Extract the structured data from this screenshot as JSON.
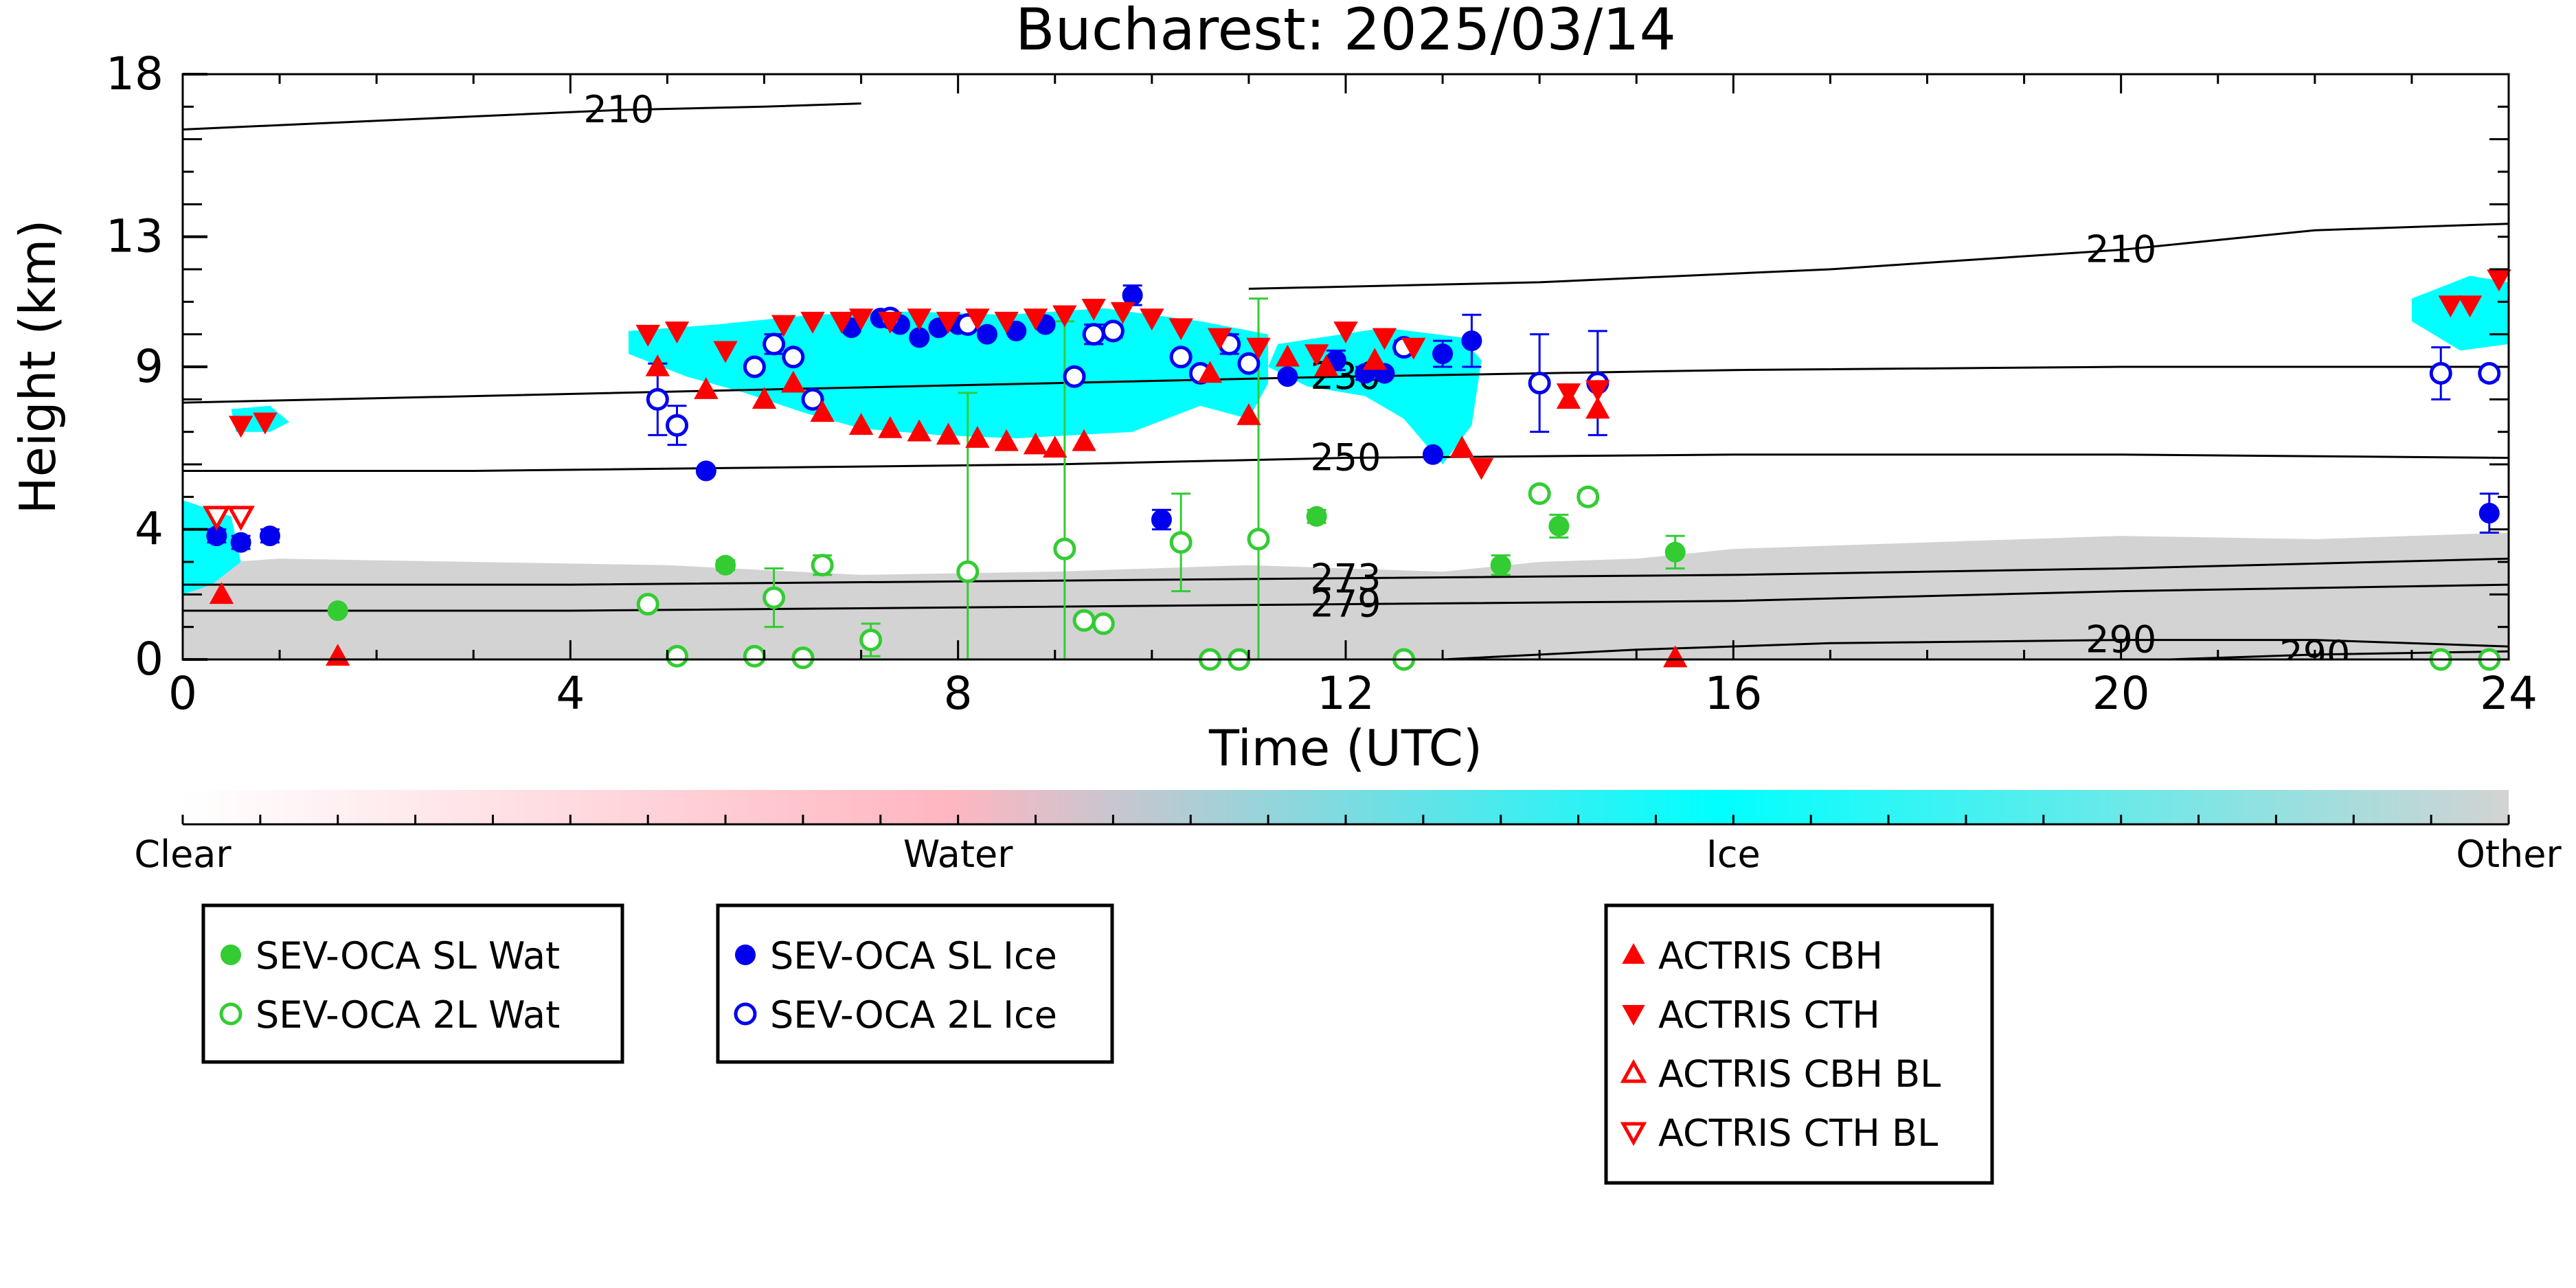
{
  "chart_data": {
    "type": "scatter",
    "title": "Bucharest: 2025/03/14",
    "xlabel": "Time (UTC)",
    "ylabel": "Height (km)",
    "xlim": [
      0,
      24
    ],
    "ylim": [
      0,
      18
    ],
    "x_ticks": [
      "0",
      "4",
      "8",
      "12",
      "16",
      "20",
      "24"
    ],
    "y_ticks": [
      "0",
      "4",
      "9",
      "13",
      "18"
    ],
    "grid": false,
    "colorbar": {
      "labels": [
        "Clear",
        "Water",
        "Ice",
        "Other"
      ],
      "colors": [
        "#ffffff",
        "#ffb6c1",
        "#00ffff",
        "#d3d3d3"
      ]
    },
    "contours": [
      {
        "label": "210",
        "points": [
          [
            0,
            16.3
          ],
          [
            1.5,
            16.5
          ],
          [
            3,
            16.7
          ],
          [
            4.5,
            16.9
          ],
          [
            6,
            17.0
          ],
          [
            7,
            17.1
          ]
        ]
      },
      {
        "label": "210",
        "points": [
          [
            11,
            11.4
          ],
          [
            14,
            11.6
          ],
          [
            17,
            12.0
          ],
          [
            20,
            12.6
          ],
          [
            22,
            13.2
          ],
          [
            24,
            13.4
          ]
        ]
      },
      {
        "label": "230",
        "points": [
          [
            0,
            7.9
          ],
          [
            3,
            8.1
          ],
          [
            6,
            8.3
          ],
          [
            9,
            8.5
          ],
          [
            12,
            8.7
          ],
          [
            16,
            8.9
          ],
          [
            20,
            9.0
          ],
          [
            24,
            9.0
          ]
        ]
      },
      {
        "label": "250",
        "points": [
          [
            0,
            5.8
          ],
          [
            3,
            5.8
          ],
          [
            6,
            5.9
          ],
          [
            9,
            6.0
          ],
          [
            12,
            6.2
          ],
          [
            16,
            6.3
          ],
          [
            20,
            6.3
          ],
          [
            24,
            6.2
          ]
        ]
      },
      {
        "label": "273",
        "points": [
          [
            0,
            2.3
          ],
          [
            4,
            2.3
          ],
          [
            8,
            2.4
          ],
          [
            12,
            2.5
          ],
          [
            16,
            2.6
          ],
          [
            20,
            2.8
          ],
          [
            24,
            3.1
          ]
        ]
      },
      {
        "label": "279",
        "points": [
          [
            0,
            1.5
          ],
          [
            4,
            1.5
          ],
          [
            8,
            1.6
          ],
          [
            12,
            1.7
          ],
          [
            16,
            1.8
          ],
          [
            20,
            2.1
          ],
          [
            24,
            2.3
          ]
        ]
      },
      {
        "label": "290",
        "points": [
          [
            13,
            0.0
          ],
          [
            15,
            0.3
          ],
          [
            17,
            0.5
          ],
          [
            20,
            0.6
          ],
          [
            22,
            0.6
          ],
          [
            24,
            0.4
          ]
        ]
      },
      {
        "label": "290",
        "points": [
          [
            20.5,
            0.0
          ],
          [
            22,
            0.15
          ],
          [
            24,
            0.25
          ]
        ]
      }
    ],
    "series": [
      {
        "name": "SEV-OCA SL Wat",
        "color": "#33cc33",
        "marker": "filled-circle",
        "x": [
          1.6,
          5.6,
          11.7,
          13.6,
          14.2,
          15.4
        ],
        "y": [
          1.5,
          2.9,
          4.4,
          2.9,
          4.1,
          3.3
        ],
        "err": [
          0.0,
          0.15,
          0.2,
          0.3,
          0.35,
          0.5
        ]
      },
      {
        "name": "SEV-OCA 2L Wat",
        "color": "#33cc33",
        "marker": "open-circle",
        "x": [
          4.8,
          5.1,
          5.9,
          6.1,
          6.4,
          6.6,
          7.1,
          8.1,
          9.1,
          9.3,
          9.5,
          10.3,
          10.6,
          10.9,
          11.1,
          12.6,
          14.0,
          14.5,
          23.3,
          23.8
        ],
        "y": [
          1.7,
          0.1,
          0.1,
          1.9,
          0.05,
          2.9,
          0.6,
          2.7,
          3.4,
          1.2,
          1.1,
          3.6,
          0.0,
          0.0,
          3.7,
          0.0,
          5.1,
          5.0,
          0.0,
          0.0
        ],
        "err": [
          0.15,
          0.0,
          0.0,
          0.9,
          0.0,
          0.3,
          0.5,
          5.5,
          7.0,
          0.0,
          0.0,
          1.5,
          0.0,
          0.0,
          7.4,
          0.0,
          0.0,
          0.2,
          0.0,
          0.0
        ]
      },
      {
        "name": "SEV-OCA SL Ice",
        "color": "#0000ee",
        "marker": "filled-circle",
        "x": [
          0.35,
          0.6,
          0.9,
          5.4,
          6.9,
          7.2,
          7.4,
          7.6,
          7.8,
          8.0,
          8.3,
          8.6,
          8.9,
          9.8,
          10.1,
          11.4,
          11.9,
          12.2,
          12.4,
          12.9,
          13.0,
          13.3,
          23.8
        ],
        "y": [
          3.8,
          3.6,
          3.8,
          5.8,
          10.2,
          10.5,
          10.3,
          9.9,
          10.2,
          10.3,
          10.0,
          10.1,
          10.3,
          11.2,
          4.3,
          8.7,
          9.2,
          8.8,
          8.8,
          6.3,
          9.4,
          9.8,
          4.5
        ],
        "err": [
          0.2,
          0.2,
          0.2,
          0.0,
          0.0,
          0.0,
          0.0,
          0.0,
          0.0,
          0.0,
          0.0,
          0.0,
          0.0,
          0.3,
          0.3,
          0.0,
          0.3,
          0.2,
          0.0,
          0.0,
          0.4,
          0.8,
          0.6
        ]
      },
      {
        "name": "SEV-OCA 2L Ice",
        "color": "#0000ee",
        "marker": "open-circle",
        "x": [
          4.9,
          5.1,
          5.9,
          6.1,
          6.3,
          6.5,
          7.3,
          8.1,
          9.2,
          9.4,
          9.6,
          10.3,
          10.5,
          10.8,
          11.0,
          12.6,
          14.0,
          14.6,
          23.3,
          23.8
        ],
        "y": [
          8.0,
          7.2,
          9.0,
          9.7,
          9.3,
          8.0,
          10.5,
          10.3,
          8.7,
          10.0,
          10.1,
          9.3,
          8.8,
          9.7,
          9.1,
          9.6,
          8.5,
          8.5,
          8.8,
          8.8
        ],
        "err": [
          1.1,
          0.6,
          0.0,
          0.3,
          0.0,
          0.0,
          0.0,
          0.0,
          0.0,
          0.3,
          0.2,
          0.0,
          0.0,
          0.3,
          0.0,
          0.2,
          1.5,
          1.6,
          0.8,
          0.2
        ]
      },
      {
        "name": "ACTRIS CBH",
        "color": "#ff0000",
        "marker": "triangle-up",
        "x": [
          0.4,
          1.6,
          4.9,
          5.4,
          6.0,
          6.3,
          6.6,
          7.0,
          7.3,
          7.6,
          7.9,
          8.2,
          8.5,
          8.8,
          9.0,
          9.3,
          10.6,
          11.0,
          11.4,
          11.8,
          12.3,
          13.2,
          14.3,
          14.6,
          15.4
        ],
        "y": [
          2.0,
          0.1,
          9.0,
          8.3,
          8.0,
          8.5,
          7.6,
          7.2,
          7.1,
          7.0,
          6.9,
          6.8,
          6.7,
          6.6,
          6.5,
          6.7,
          8.8,
          7.5,
          9.3,
          9.0,
          9.2,
          6.5,
          8.0,
          7.7,
          0.05
        ]
      },
      {
        "name": "ACTRIS CTH",
        "color": "#ff0000",
        "marker": "triangle-down",
        "x": [
          0.6,
          0.85,
          4.8,
          5.1,
          5.6,
          6.2,
          6.5,
          6.8,
          7.0,
          7.3,
          7.6,
          7.9,
          8.2,
          8.5,
          8.8,
          9.1,
          9.4,
          9.7,
          10.0,
          10.3,
          10.7,
          11.1,
          11.7,
          12.0,
          12.4,
          12.7,
          13.4,
          14.3,
          14.6,
          23.4,
          23.6,
          23.9
        ],
        "y": [
          7.2,
          7.3,
          10.0,
          10.1,
          9.5,
          10.3,
          10.4,
          10.4,
          10.5,
          10.4,
          10.5,
          10.4,
          10.5,
          10.4,
          10.5,
          10.6,
          10.8,
          10.7,
          10.5,
          10.2,
          9.9,
          9.6,
          9.4,
          10.1,
          9.9,
          9.6,
          5.9,
          8.2,
          8.3,
          10.9,
          10.9,
          11.7
        ]
      },
      {
        "name": "ACTRIS CBH BL",
        "color": "#ff0000",
        "marker": "open-triangle-up",
        "x": [],
        "y": []
      },
      {
        "name": "ACTRIS CTH BL",
        "color": "#ff0000",
        "marker": "open-triangle-down",
        "x": [
          0.35,
          0.6
        ],
        "y": [
          4.4,
          4.4
        ]
      }
    ],
    "legend_groups": [
      [
        "SEV-OCA SL Wat",
        "SEV-OCA 2L Wat"
      ],
      [
        "SEV-OCA SL Ice",
        "SEV-OCA 2L Ice"
      ],
      [
        "ACTRIS CBH",
        "ACTRIS CTH",
        "ACTRIS CBH BL",
        "ACTRIS CTH BL"
      ]
    ]
  }
}
